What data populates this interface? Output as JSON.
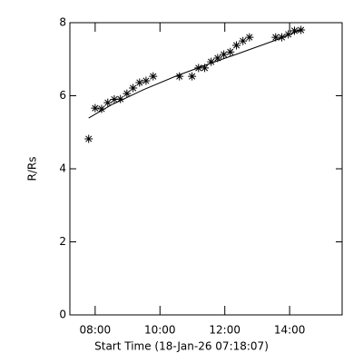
{
  "chart_data": {
    "type": "scatter",
    "x_label": "Start Time (18-Jan-26 07:18:07)",
    "y_label": "R/Rs",
    "xlim": [
      7.22,
      15.62
    ],
    "ylim": [
      0,
      8
    ],
    "xticks": [
      {
        "value": 8,
        "label": "08:00"
      },
      {
        "value": 10,
        "label": "10:00"
      },
      {
        "value": 12,
        "label": "12:00"
      },
      {
        "value": 14,
        "label": "14:00"
      }
    ],
    "yticks": [
      0,
      2,
      4,
      6,
      8
    ],
    "series": [
      {
        "style": "asterisk",
        "color": "#000000",
        "x": [
          7.8,
          8.0,
          8.2,
          8.39,
          8.59,
          8.78,
          8.98,
          9.17,
          9.37,
          9.57,
          9.79,
          10.6,
          10.99,
          11.19,
          11.38,
          11.58,
          11.78,
          11.97,
          12.17,
          12.36,
          12.56,
          12.76,
          13.57,
          13.76,
          13.96,
          14.15,
          14.35
        ],
        "values": [
          4.82,
          5.66,
          5.64,
          5.81,
          5.9,
          5.91,
          6.06,
          6.21,
          6.36,
          6.41,
          6.53,
          6.53,
          6.53,
          6.76,
          6.76,
          6.93,
          7.03,
          7.13,
          7.2,
          7.38,
          7.5,
          7.6,
          7.6,
          7.6,
          7.68,
          7.78,
          7.8
        ]
      },
      {
        "style": "line",
        "color": "#000000",
        "x": [
          7.8,
          8.5,
          9.5,
          10.5,
          11.5,
          12.5,
          13.5,
          14.4
        ],
        "values": [
          5.39,
          5.75,
          6.17,
          6.54,
          6.87,
          7.18,
          7.5,
          7.82
        ]
      }
    ]
  }
}
